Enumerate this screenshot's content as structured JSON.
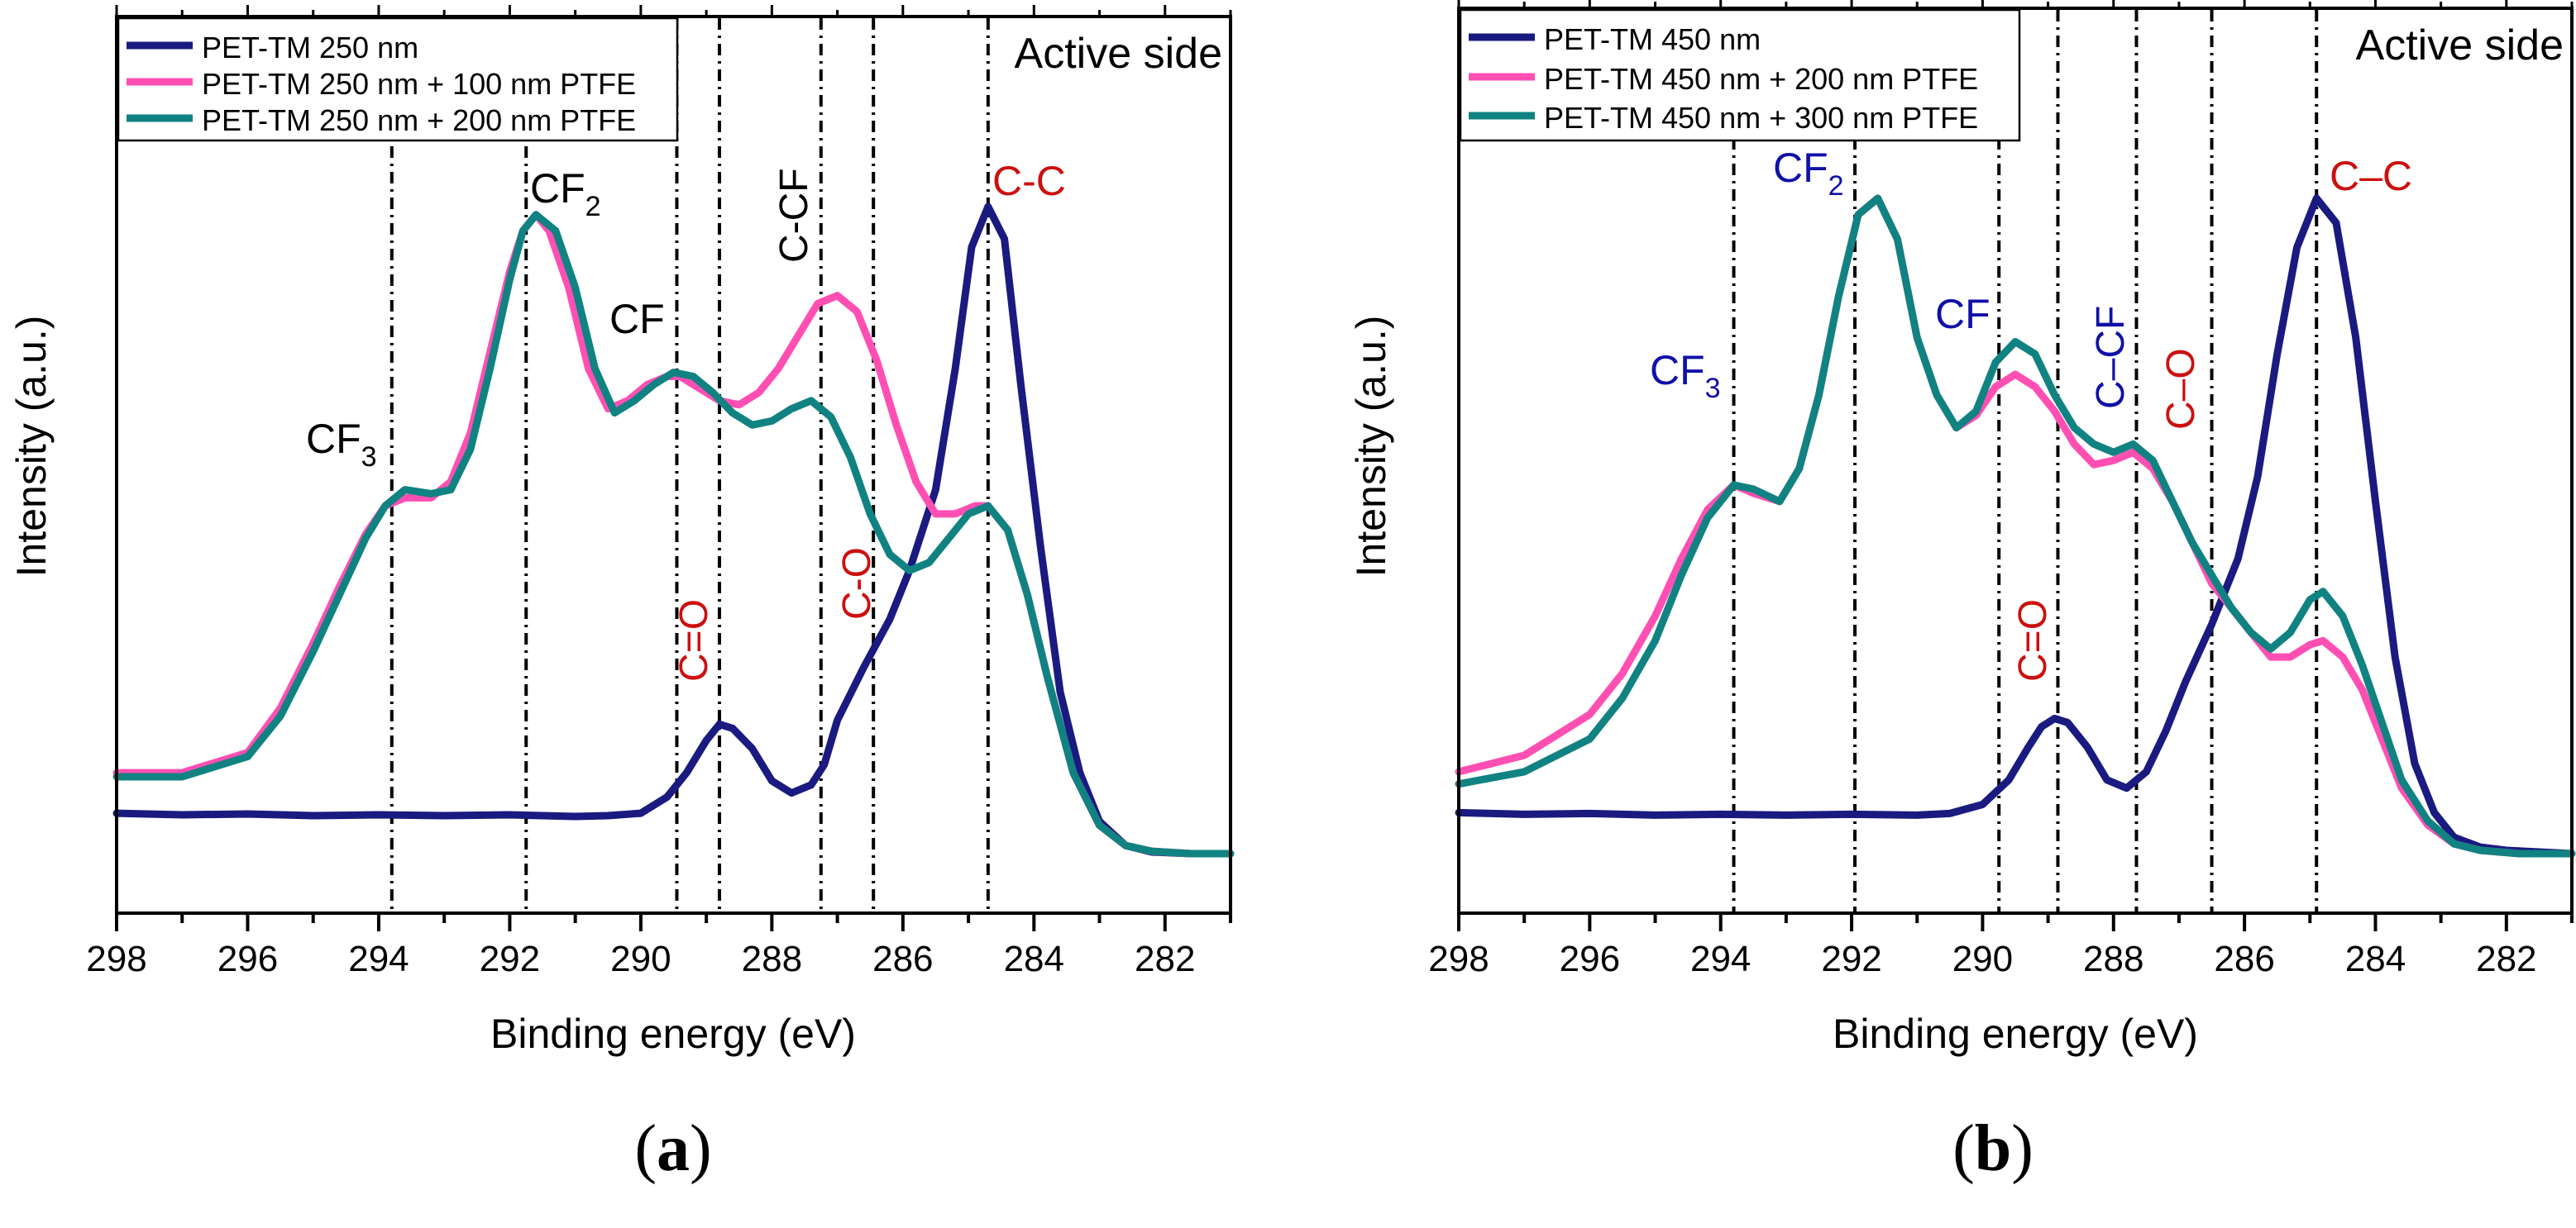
{
  "colors": {
    "navy": "#1a1a80",
    "pink": "#ff4fb3",
    "teal": "#118282",
    "annot_red": "#cc1010",
    "annot_blue": "#1010a8",
    "black": "#000000"
  },
  "chart_data": [
    {
      "type": "line",
      "panel": "a",
      "caption": "a",
      "xlabel": "Binding energy (eV)",
      "ylabel": "Intensity (a.u.)",
      "xlim": [
        298,
        281
      ],
      "ylim": [
        0,
        1.03
      ],
      "xticks": [
        "298",
        "296",
        "294",
        "292",
        "290",
        "288",
        "286",
        "284",
        "282"
      ],
      "corner_label": "Active side",
      "legend_position": "top-left",
      "vlines": [
        293.8,
        291.75,
        289.45,
        288.8,
        287.25,
        286.45,
        284.7
      ],
      "series": [
        {
          "name": "PET-TM 250 nm",
          "color": "#1a1a80",
          "x": [
            298,
            297,
            296,
            295,
            294,
            293,
            292,
            291,
            290.5,
            290,
            289.6,
            289.3,
            289.0,
            288.8,
            288.6,
            288.3,
            288.0,
            287.7,
            287.4,
            287.2,
            287.0,
            286.6,
            286.2,
            285.9,
            285.5,
            285.2,
            284.95,
            284.7,
            284.45,
            284.2,
            283.9,
            283.6,
            283.3,
            283.0,
            282.6,
            282.2,
            281.6,
            281.0
          ],
          "y": [
            0.05,
            0.048,
            0.049,
            0.047,
            0.048,
            0.047,
            0.048,
            0.046,
            0.047,
            0.05,
            0.07,
            0.1,
            0.14,
            0.16,
            0.155,
            0.13,
            0.09,
            0.075,
            0.085,
            0.11,
            0.165,
            0.23,
            0.29,
            0.35,
            0.45,
            0.6,
            0.75,
            0.8,
            0.76,
            0.58,
            0.38,
            0.2,
            0.1,
            0.04,
            0.01,
            0.002,
            0.0,
            0.0
          ]
        },
        {
          "name": "PET-TM 250 nm + 100 nm PTFE",
          "color": "#ff4fb3",
          "x": [
            298,
            297,
            296,
            295.5,
            295,
            294.6,
            294.2,
            293.9,
            293.6,
            293.2,
            292.9,
            292.6,
            292.3,
            292.0,
            291.8,
            291.6,
            291.4,
            291.1,
            290.8,
            290.5,
            290.2,
            289.9,
            289.6,
            289.4,
            289.1,
            288.8,
            288.5,
            288.2,
            287.9,
            287.6,
            287.3,
            287.0,
            286.7,
            286.4,
            286.1,
            285.8,
            285.5,
            285.2,
            284.9,
            284.7,
            284.4,
            284.1,
            283.8,
            283.4,
            283.0,
            282.6,
            282.2,
            281.6,
            281.0
          ],
          "y": [
            0.1,
            0.1,
            0.125,
            0.18,
            0.26,
            0.33,
            0.395,
            0.43,
            0.44,
            0.44,
            0.46,
            0.52,
            0.62,
            0.72,
            0.77,
            0.79,
            0.77,
            0.7,
            0.6,
            0.55,
            0.56,
            0.58,
            0.59,
            0.59,
            0.575,
            0.56,
            0.555,
            0.57,
            0.6,
            0.64,
            0.68,
            0.69,
            0.67,
            0.61,
            0.53,
            0.46,
            0.42,
            0.42,
            0.43,
            0.43,
            0.4,
            0.32,
            0.22,
            0.1,
            0.035,
            0.01,
            0.003,
            0.0,
            0.0
          ]
        },
        {
          "name": "PET-TM 250 nm + 200 nm PTFE",
          "color": "#118282",
          "x": [
            298,
            297,
            296,
            295.5,
            295,
            294.6,
            294.2,
            293.9,
            293.6,
            293.2,
            292.9,
            292.6,
            292.3,
            292.0,
            291.8,
            291.6,
            291.3,
            291.0,
            290.7,
            290.4,
            290.1,
            289.8,
            289.5,
            289.2,
            288.9,
            288.6,
            288.3,
            288.0,
            287.7,
            287.4,
            287.1,
            286.8,
            286.5,
            286.2,
            285.9,
            285.6,
            285.3,
            285.0,
            284.7,
            284.4,
            284.1,
            283.8,
            283.4,
            283.0,
            282.6,
            282.2,
            281.6,
            281.0
          ],
          "y": [
            0.095,
            0.095,
            0.12,
            0.17,
            0.25,
            0.32,
            0.39,
            0.43,
            0.45,
            0.445,
            0.45,
            0.5,
            0.6,
            0.71,
            0.77,
            0.79,
            0.77,
            0.7,
            0.6,
            0.545,
            0.56,
            0.58,
            0.595,
            0.59,
            0.57,
            0.545,
            0.53,
            0.535,
            0.55,
            0.56,
            0.54,
            0.49,
            0.42,
            0.37,
            0.35,
            0.36,
            0.39,
            0.42,
            0.43,
            0.4,
            0.32,
            0.22,
            0.1,
            0.035,
            0.01,
            0.003,
            0.0,
            0.0
          ]
        }
      ]
    },
    {
      "type": "line",
      "panel": "b",
      "caption": "b",
      "xlabel": "Binding energy (eV)",
      "ylabel": "Intensity (a.u.)",
      "xlim": [
        298,
        281
      ],
      "ylim": [
        0,
        1.03
      ],
      "xticks": [
        "298",
        "296",
        "294",
        "292",
        "290",
        "288",
        "286",
        "284",
        "282"
      ],
      "corner_label": "Active side",
      "legend_position": "top-left",
      "vlines": [
        293.8,
        291.95,
        289.75,
        288.85,
        287.65,
        286.5,
        284.9
      ],
      "series": [
        {
          "name": "PET-TM 450 nm",
          "color": "#1a1a80",
          "x": [
            298,
            297,
            296,
            295,
            294,
            293,
            292,
            291,
            290.5,
            290.0,
            289.6,
            289.3,
            289.1,
            288.9,
            288.7,
            288.4,
            288.1,
            287.8,
            287.5,
            287.2,
            286.9,
            286.5,
            286.1,
            285.8,
            285.5,
            285.2,
            284.9,
            284.6,
            284.3,
            284.0,
            283.7,
            283.4,
            283.1,
            282.8,
            282.4,
            282.0,
            281.5,
            281.0
          ],
          "y": [
            0.05,
            0.048,
            0.049,
            0.047,
            0.048,
            0.047,
            0.048,
            0.047,
            0.049,
            0.06,
            0.09,
            0.13,
            0.155,
            0.165,
            0.16,
            0.13,
            0.09,
            0.08,
            0.1,
            0.15,
            0.21,
            0.28,
            0.36,
            0.46,
            0.61,
            0.74,
            0.8,
            0.77,
            0.63,
            0.43,
            0.24,
            0.11,
            0.05,
            0.02,
            0.008,
            0.004,
            0.002,
            0.0
          ]
        },
        {
          "name": "PET-TM 450 nm + 200 nm PTFE",
          "color": "#ff4fb3",
          "x": [
            298,
            297.5,
            297,
            296.5,
            296,
            295.5,
            295,
            294.6,
            294.2,
            293.8,
            293.5,
            293.1,
            292.8,
            292.5,
            292.2,
            291.9,
            291.6,
            291.3,
            291.0,
            290.7,
            290.4,
            290.1,
            289.8,
            289.5,
            289.2,
            288.9,
            288.6,
            288.3,
            288.0,
            287.7,
            287.4,
            287.1,
            286.8,
            286.5,
            286.2,
            285.9,
            285.6,
            285.3,
            285.0,
            284.8,
            284.5,
            284.2,
            283.9,
            283.6,
            283.2,
            282.8,
            282.4,
            281.8,
            281.0
          ],
          "y": [
            0.1,
            0.11,
            0.12,
            0.145,
            0.17,
            0.22,
            0.29,
            0.36,
            0.42,
            0.45,
            0.44,
            0.43,
            0.47,
            0.56,
            0.68,
            0.78,
            0.8,
            0.75,
            0.63,
            0.56,
            0.52,
            0.535,
            0.57,
            0.585,
            0.57,
            0.54,
            0.5,
            0.475,
            0.48,
            0.49,
            0.47,
            0.43,
            0.38,
            0.33,
            0.3,
            0.27,
            0.24,
            0.24,
            0.255,
            0.26,
            0.24,
            0.2,
            0.14,
            0.08,
            0.035,
            0.012,
            0.004,
            0.0,
            0.0
          ]
        },
        {
          "name": "PET-TM 450 nm + 300 nm PTFE",
          "color": "#118282",
          "x": [
            298,
            297,
            296,
            295.5,
            295,
            294.6,
            294.2,
            293.8,
            293.5,
            293.1,
            292.8,
            292.5,
            292.2,
            291.9,
            291.6,
            291.3,
            291.0,
            290.7,
            290.4,
            290.1,
            289.8,
            289.5,
            289.2,
            288.9,
            288.6,
            288.3,
            288.0,
            287.7,
            287.4,
            287.1,
            286.8,
            286.5,
            286.2,
            285.9,
            285.6,
            285.3,
            285.0,
            284.8,
            284.5,
            284.2,
            283.9,
            283.6,
            283.2,
            282.8,
            282.4,
            281.8,
            281.0
          ],
          "y": [
            0.085,
            0.1,
            0.14,
            0.19,
            0.26,
            0.34,
            0.41,
            0.45,
            0.445,
            0.43,
            0.47,
            0.56,
            0.68,
            0.78,
            0.8,
            0.75,
            0.63,
            0.56,
            0.52,
            0.54,
            0.6,
            0.625,
            0.61,
            0.56,
            0.52,
            0.5,
            0.49,
            0.5,
            0.48,
            0.43,
            0.38,
            0.34,
            0.3,
            0.27,
            0.25,
            0.27,
            0.31,
            0.32,
            0.29,
            0.23,
            0.16,
            0.09,
            0.04,
            0.012,
            0.004,
            0.0,
            0.0
          ]
        }
      ]
    }
  ],
  "annotations": {
    "a": {
      "cf3_main": "CF",
      "cf3_sub": "3",
      "cf2_main": "CF",
      "cf2_sub": "2",
      "cf": "CF",
      "c_cf": "C-CF",
      "c_o": "C-O",
      "c_eq_o": "C=O",
      "c_c": "C-C"
    },
    "b": {
      "cf3_main": "CF",
      "cf3_sub": "3",
      "cf2_main": "CF",
      "cf2_sub": "2",
      "cf": "CF",
      "c_cf": "C–CF",
      "c_o": "C–O",
      "c_eq_o": "C=O",
      "c_c": "C–C"
    }
  },
  "captions": {
    "a": "a",
    "b": "b"
  }
}
